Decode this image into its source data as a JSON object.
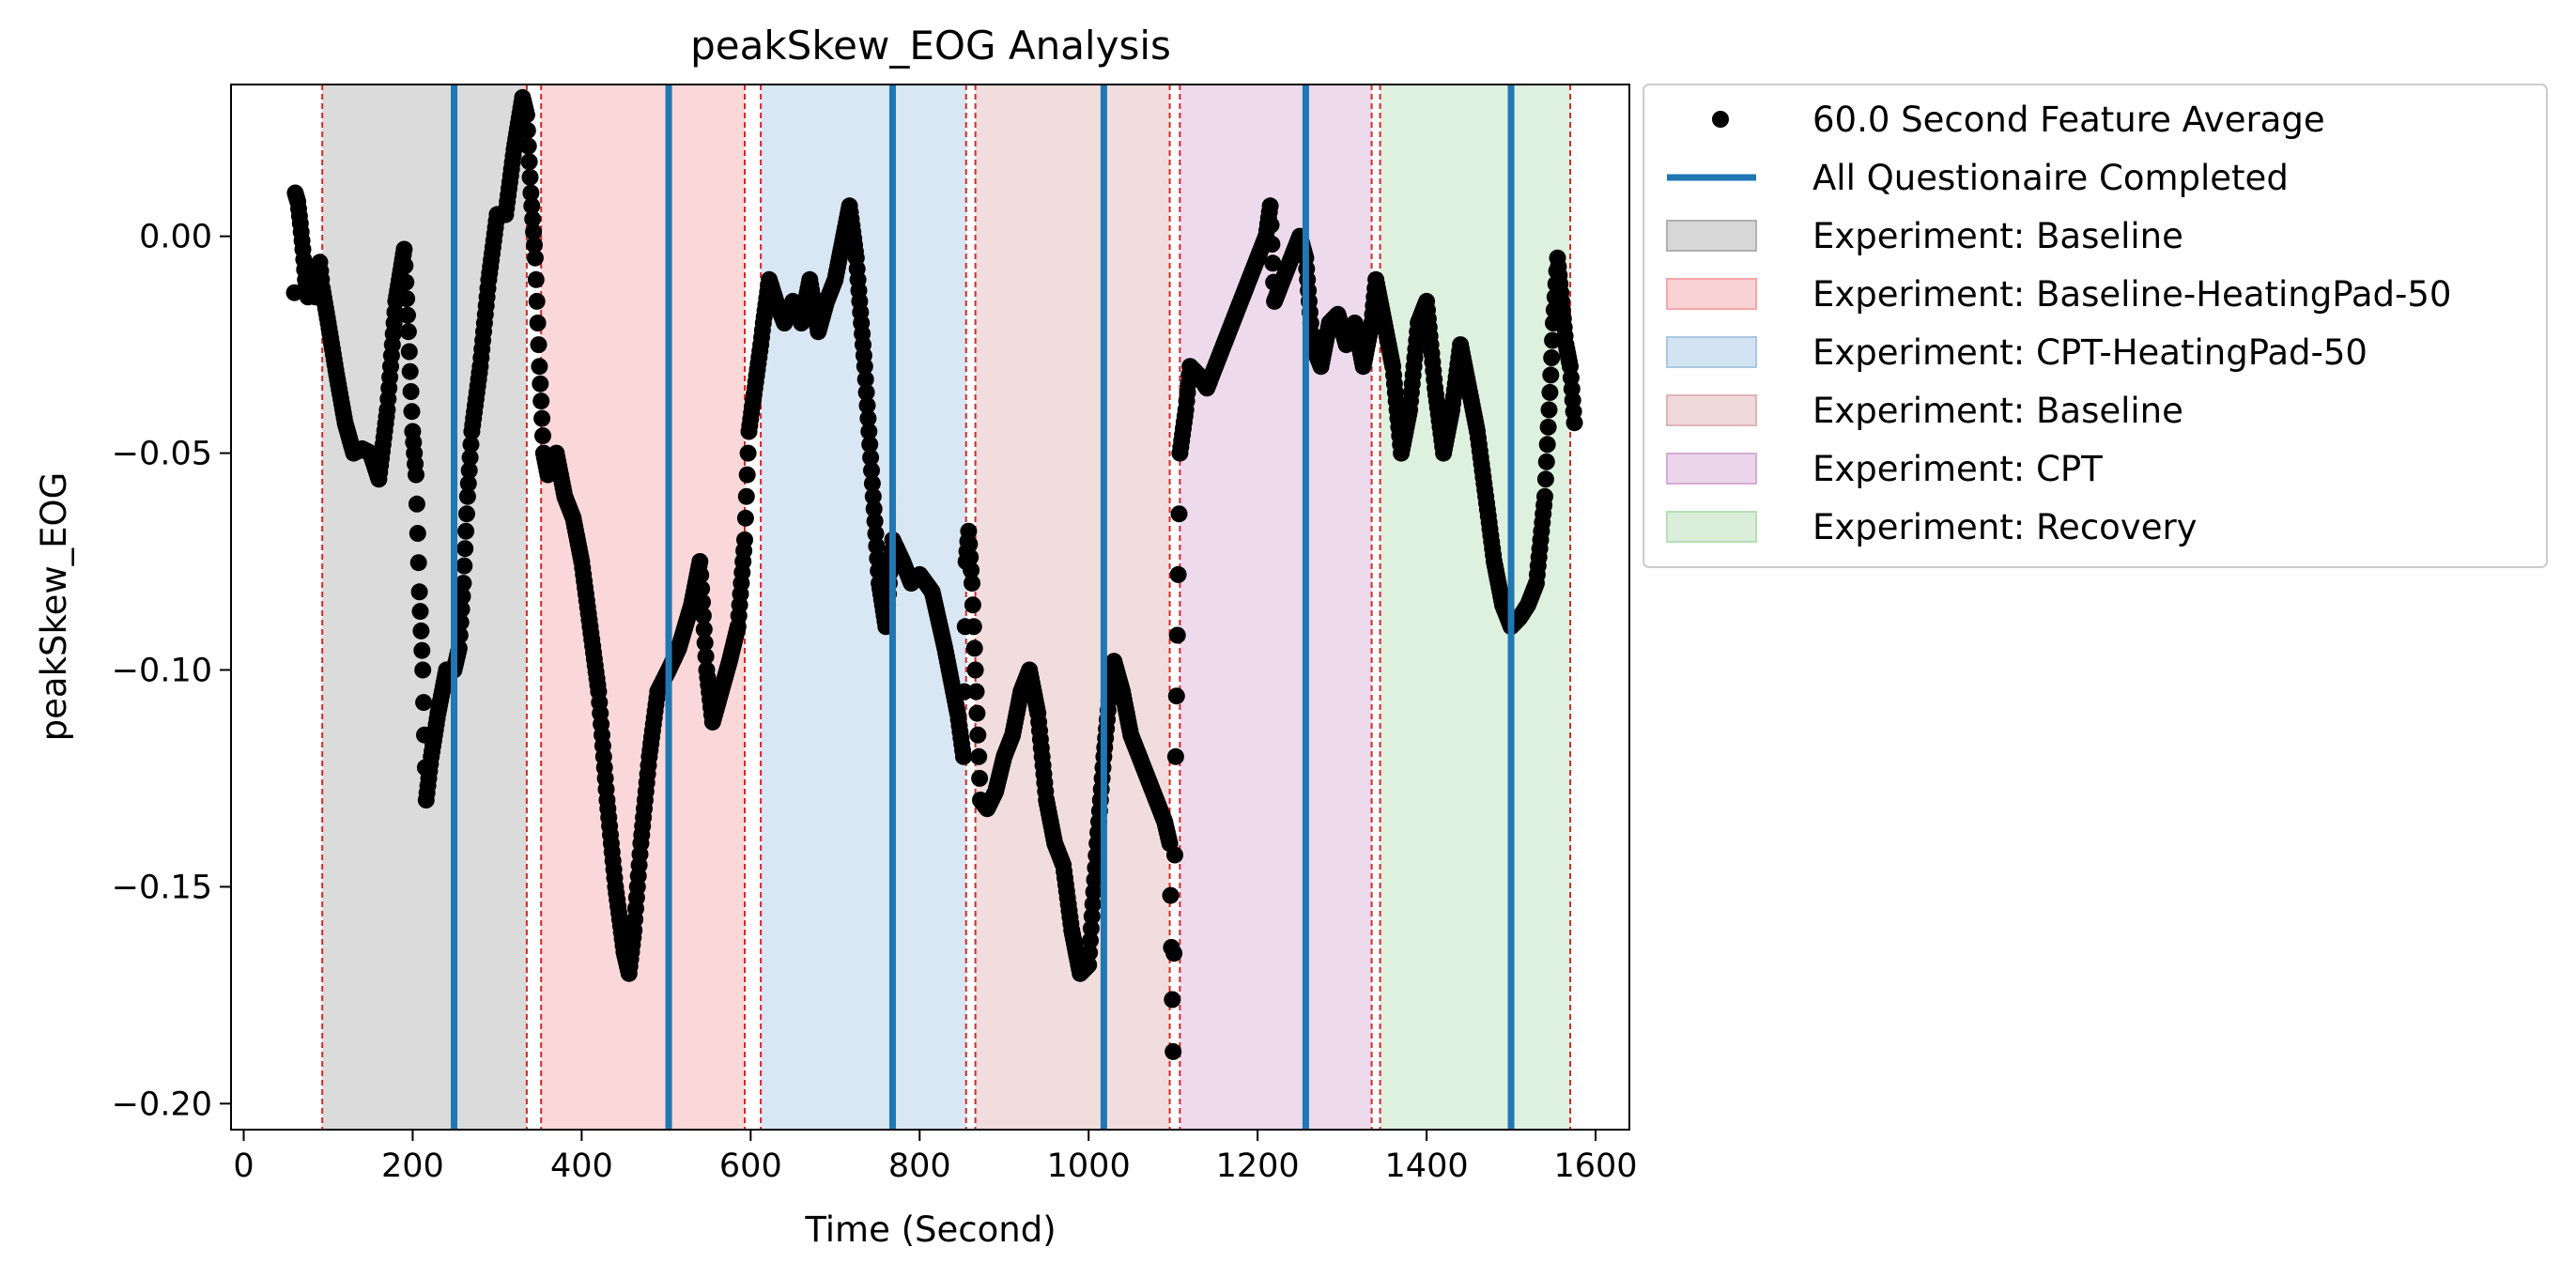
{
  "chart_data": {
    "type": "scatter",
    "title": "peakSkew_EOG Analysis",
    "xlabel": "Time (Second)",
    "ylabel": "peakSkew_EOG",
    "xlim": [
      -15,
      1640
    ],
    "ylim": [
      -0.206,
      0.035
    ],
    "x_ticks": [
      0,
      200,
      400,
      600,
      800,
      1000,
      1200,
      1400,
      1600
    ],
    "x_tick_labels": [
      "0",
      "200",
      "400",
      "600",
      "800",
      "1000",
      "1200",
      "1400",
      "1600"
    ],
    "y_ticks": [
      0.0,
      -0.05,
      -0.1,
      -0.15,
      -0.2
    ],
    "y_tick_labels": [
      "0.00",
      "−0.05",
      "−0.10",
      "−0.15",
      "−0.20"
    ],
    "grid": false,
    "legend_position": "outside-right",
    "legend": [
      {
        "label": "60.0 Second Feature Average",
        "kind": "marker",
        "color": "#000000"
      },
      {
        "label": "All Questionaire Completed",
        "kind": "line",
        "color": "#1f77b4"
      },
      {
        "label": "Experiment: Baseline",
        "kind": "patch",
        "color": "#b0b0b0"
      },
      {
        "label": "Experiment: Baseline-HeatingPad-50",
        "kind": "patch",
        "color": "#f4a6aa"
      },
      {
        "label": "Experiment: CPT-HeatingPad-50",
        "kind": "patch",
        "color": "#aac8e4"
      },
      {
        "label": "Experiment: Baseline",
        "kind": "patch",
        "color": "#e0b4b6"
      },
      {
        "label": "Experiment: CPT",
        "kind": "patch",
        "color": "#d6acd6"
      },
      {
        "label": "Experiment: Recovery",
        "kind": "patch",
        "color": "#b5deb5"
      }
    ],
    "spans": [
      {
        "label": "Experiment: Baseline",
        "start": 93,
        "end": 335,
        "color": "#b0b0b0"
      },
      {
        "label": "Experiment: Baseline-HeatingPad-50",
        "start": 352,
        "end": 593,
        "color": "#f4a6aa"
      },
      {
        "label": "Experiment: CPT-HeatingPad-50",
        "start": 612,
        "end": 855,
        "color": "#aac8e4"
      },
      {
        "label": "Experiment: Baseline",
        "start": 866,
        "end": 1096,
        "color": "#e0b4b6"
      },
      {
        "label": "Experiment: CPT",
        "start": 1108,
        "end": 1335,
        "color": "#d6acd6"
      },
      {
        "label": "Experiment: Recovery",
        "start": 1345,
        "end": 1570,
        "color": "#b5deb5"
      }
    ],
    "span_boundaries": [
      93,
      335,
      352,
      593,
      612,
      855,
      866,
      1096,
      1108,
      1335,
      1345,
      1570
    ],
    "questionnaire_completed": [
      249,
      503,
      768,
      1018,
      1257,
      1500
    ],
    "series": [
      {
        "name": "60.0 Second Feature Average",
        "color": "#000000",
        "trend": [
          [
            60,
            -0.013
          ],
          [
            61,
            0.01
          ],
          [
            64,
            0.008
          ],
          [
            67,
            0.003
          ],
          [
            70,
            -0.003
          ],
          [
            73,
            -0.01
          ],
          [
            76,
            -0.014
          ],
          [
            80,
            -0.008
          ],
          [
            85,
            -0.014
          ],
          [
            90,
            -0.006
          ],
          [
            93,
            -0.012
          ],
          [
            100,
            -0.02
          ],
          [
            110,
            -0.032
          ],
          [
            120,
            -0.043
          ],
          [
            130,
            -0.05
          ],
          [
            140,
            -0.049
          ],
          [
            150,
            -0.05
          ],
          [
            160,
            -0.056
          ],
          [
            170,
            -0.04
          ],
          [
            180,
            -0.015
          ],
          [
            190,
            -0.003
          ],
          [
            195,
            -0.022
          ],
          [
            200,
            -0.045
          ],
          [
            204,
            -0.055
          ],
          [
            208,
            -0.082
          ],
          [
            212,
            -0.1
          ],
          [
            216,
            -0.13
          ],
          [
            222,
            -0.12
          ],
          [
            230,
            -0.11
          ],
          [
            240,
            -0.1
          ],
          [
            249,
            -0.1
          ],
          [
            255,
            -0.095
          ],
          [
            260,
            -0.08
          ],
          [
            265,
            -0.06
          ],
          [
            270,
            -0.045
          ],
          [
            280,
            -0.03
          ],
          [
            290,
            -0.01
          ],
          [
            300,
            0.005
          ],
          [
            310,
            0.005
          ],
          [
            320,
            0.02
          ],
          [
            330,
            0.032
          ],
          [
            335,
            0.028
          ],
          [
            340,
            0.01
          ],
          [
            345,
            -0.005
          ],
          [
            350,
            -0.03
          ],
          [
            355,
            -0.05
          ],
          [
            360,
            -0.055
          ],
          [
            370,
            -0.05
          ],
          [
            380,
            -0.06
          ],
          [
            390,
            -0.065
          ],
          [
            400,
            -0.075
          ],
          [
            410,
            -0.09
          ],
          [
            420,
            -0.105
          ],
          [
            430,
            -0.13
          ],
          [
            440,
            -0.15
          ],
          [
            450,
            -0.165
          ],
          [
            456,
            -0.17
          ],
          [
            462,
            -0.16
          ],
          [
            470,
            -0.14
          ],
          [
            480,
            -0.12
          ],
          [
            490,
            -0.105
          ],
          [
            503,
            -0.1
          ],
          [
            515,
            -0.095
          ],
          [
            530,
            -0.085
          ],
          [
            540,
            -0.075
          ],
          [
            548,
            -0.1
          ],
          [
            555,
            -0.112
          ],
          [
            565,
            -0.105
          ],
          [
            575,
            -0.098
          ],
          [
            585,
            -0.09
          ],
          [
            593,
            -0.07
          ],
          [
            598,
            -0.045
          ],
          [
            605,
            -0.035
          ],
          [
            612,
            -0.025
          ],
          [
            615,
            -0.02
          ],
          [
            622,
            -0.01
          ],
          [
            630,
            -0.015
          ],
          [
            640,
            -0.02
          ],
          [
            650,
            -0.015
          ],
          [
            660,
            -0.02
          ],
          [
            670,
            -0.01
          ],
          [
            680,
            -0.022
          ],
          [
            690,
            -0.015
          ],
          [
            700,
            -0.01
          ],
          [
            710,
            0.0
          ],
          [
            717,
            0.007
          ],
          [
            725,
            -0.005
          ],
          [
            735,
            -0.03
          ],
          [
            745,
            -0.06
          ],
          [
            752,
            -0.08
          ],
          [
            760,
            -0.09
          ],
          [
            768,
            -0.07
          ],
          [
            780,
            -0.075
          ],
          [
            790,
            -0.08
          ],
          [
            800,
            -0.078
          ],
          [
            815,
            -0.082
          ],
          [
            830,
            -0.095
          ],
          [
            845,
            -0.11
          ],
          [
            852,
            -0.12
          ],
          [
            855,
            -0.075
          ],
          [
            858,
            -0.068
          ],
          [
            862,
            -0.08
          ],
          [
            866,
            -0.1
          ],
          [
            872,
            -0.13
          ],
          [
            880,
            -0.132
          ],
          [
            890,
            -0.128
          ],
          [
            900,
            -0.12
          ],
          [
            910,
            -0.115
          ],
          [
            920,
            -0.105
          ],
          [
            930,
            -0.1
          ],
          [
            940,
            -0.11
          ],
          [
            950,
            -0.13
          ],
          [
            960,
            -0.14
          ],
          [
            970,
            -0.145
          ],
          [
            980,
            -0.16
          ],
          [
            990,
            -0.17
          ],
          [
            1000,
            -0.168
          ],
          [
            1010,
            -0.14
          ],
          [
            1018,
            -0.12
          ],
          [
            1025,
            -0.105
          ],
          [
            1030,
            -0.098
          ],
          [
            1040,
            -0.105
          ],
          [
            1050,
            -0.115
          ],
          [
            1060,
            -0.12
          ],
          [
            1070,
            -0.125
          ],
          [
            1080,
            -0.13
          ],
          [
            1090,
            -0.135
          ],
          [
            1096,
            -0.14
          ],
          [
            1100,
            -0.188
          ],
          [
            1103,
            -0.12
          ],
          [
            1106,
            -0.078
          ],
          [
            1108,
            -0.05
          ],
          [
            1115,
            -0.04
          ],
          [
            1120,
            -0.03
          ],
          [
            1130,
            -0.032
          ],
          [
            1140,
            -0.035
          ],
          [
            1150,
            -0.03
          ],
          [
            1160,
            -0.025
          ],
          [
            1170,
            -0.02
          ],
          [
            1180,
            -0.015
          ],
          [
            1190,
            -0.01
          ],
          [
            1200,
            -0.005
          ],
          [
            1210,
            0.0
          ],
          [
            1215,
            0.007
          ],
          [
            1220,
            -0.015
          ],
          [
            1230,
            -0.01
          ],
          [
            1240,
            -0.005
          ],
          [
            1250,
            0.0
          ],
          [
            1257,
            -0.005
          ],
          [
            1265,
            -0.025
          ],
          [
            1275,
            -0.03
          ],
          [
            1285,
            -0.02
          ],
          [
            1295,
            -0.018
          ],
          [
            1305,
            -0.025
          ],
          [
            1315,
            -0.02
          ],
          [
            1325,
            -0.03
          ],
          [
            1335,
            -0.02
          ],
          [
            1340,
            -0.01
          ],
          [
            1345,
            -0.015
          ],
          [
            1350,
            -0.02
          ],
          [
            1360,
            -0.03
          ],
          [
            1370,
            -0.05
          ],
          [
            1380,
            -0.04
          ],
          [
            1390,
            -0.02
          ],
          [
            1400,
            -0.015
          ],
          [
            1410,
            -0.035
          ],
          [
            1420,
            -0.05
          ],
          [
            1430,
            -0.04
          ],
          [
            1440,
            -0.025
          ],
          [
            1450,
            -0.035
          ],
          [
            1460,
            -0.045
          ],
          [
            1470,
            -0.06
          ],
          [
            1480,
            -0.075
          ],
          [
            1490,
            -0.085
          ],
          [
            1500,
            -0.09
          ],
          [
            1510,
            -0.088
          ],
          [
            1520,
            -0.085
          ],
          [
            1530,
            -0.08
          ],
          [
            1540,
            -0.06
          ],
          [
            1545,
            -0.04
          ],
          [
            1550,
            -0.02
          ],
          [
            1555,
            -0.005
          ],
          [
            1560,
            -0.015
          ],
          [
            1565,
            -0.025
          ],
          [
            1570,
            -0.03
          ],
          [
            1575,
            -0.043
          ]
        ]
      }
    ]
  }
}
